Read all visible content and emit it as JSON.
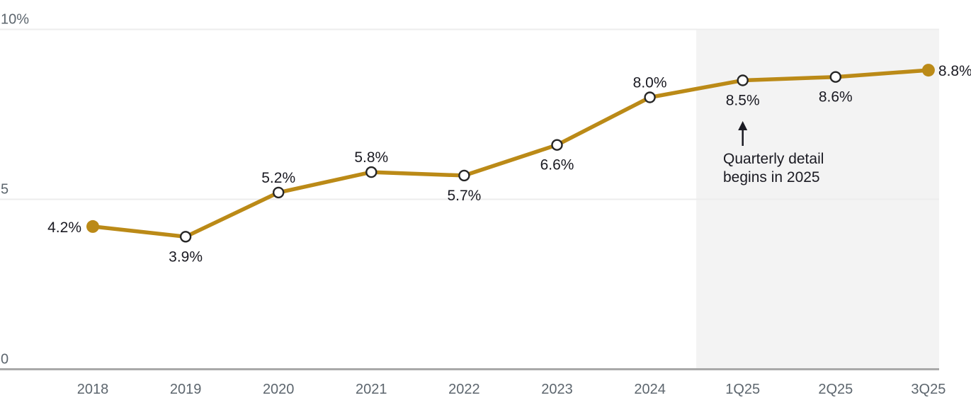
{
  "colors": {
    "line": "#bb8a17",
    "marker_ring": "#262626",
    "marker_fill_open": "#ffffff",
    "label_text": "#1a1a22",
    "axis_text": "#5d666e",
    "gridline": "#ededed",
    "axis_line": "#a9a9a9",
    "shade": "#f3f3f3",
    "background": "#ffffff"
  },
  "chart_data": {
    "type": "line",
    "title": "",
    "categories": [
      "2018",
      "2019",
      "2020",
      "2021",
      "2022",
      "2023",
      "2024",
      "1Q25",
      "2Q25",
      "3Q25"
    ],
    "values": [
      4.2,
      3.9,
      5.2,
      5.8,
      5.7,
      6.6,
      8.0,
      8.5,
      8.6,
      8.8
    ],
    "point_labels": [
      "4.2%",
      "3.9%",
      "5.2%",
      "5.8%",
      "5.7%",
      "6.6%",
      "8.0%",
      "8.5%",
      "8.6%",
      "8.8%"
    ],
    "label_positions": [
      "left",
      "below",
      "above",
      "above",
      "below",
      "below",
      "above",
      "below",
      "below",
      "right"
    ],
    "marker_styles": [
      "filled",
      "open",
      "open",
      "open",
      "open",
      "open",
      "open",
      "open",
      "open",
      "filled"
    ],
    "xlabel": "",
    "ylabel": "",
    "y_axis": {
      "min": 0,
      "max": 10,
      "ticks": [
        0,
        5,
        10
      ],
      "tick_labels": [
        "0",
        "5",
        "10%"
      ]
    },
    "grid": true,
    "legend": "none",
    "shaded_region": {
      "starts_between": [
        "2024",
        "1Q25"
      ],
      "extends_to": "right-edge",
      "meaning": "quarterly detail period"
    },
    "annotation": {
      "line1": "Quarterly detail",
      "line2": "begins in 2025",
      "arrow": "up",
      "points_at": "1Q25"
    }
  }
}
